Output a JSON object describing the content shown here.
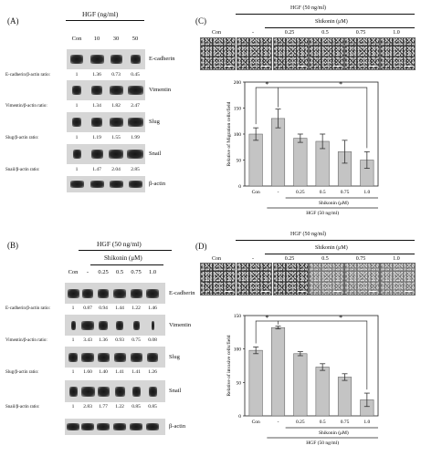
{
  "panel_a": {
    "letter": "(A)",
    "header": "HGF (ng/ml)",
    "conditions": [
      "Con",
      "10",
      "30",
      "50"
    ],
    "blots": [
      {
        "protein": "E-cadherin",
        "ratio_label": "E-cadherin/β-actin ratio:",
        "ratios": [
          "1",
          "1.36",
          "0.73",
          "0.45"
        ]
      },
      {
        "protein": "Vimentin",
        "ratio_label": "Vimentin/β-actin ratio:",
        "ratios": [
          "1",
          "1.34",
          "1.82",
          "2.47"
        ]
      },
      {
        "protein": "Slug",
        "ratio_label": "Slug/β-actin ratio:",
        "ratios": [
          "1",
          "1.19",
          "1.55",
          "1.99"
        ]
      },
      {
        "protein": "Snail",
        "ratio_label": "Snail/β-actin ratio:",
        "ratios": [
          "1",
          "1.47",
          "2.04",
          "2.85"
        ]
      },
      {
        "protein": "β-actin",
        "ratio_label": "",
        "ratios": []
      }
    ]
  },
  "panel_b": {
    "letter": "(B)",
    "header": "HGF (50 ng/ml)",
    "subheader": "Shikonin (μM)",
    "conditions": [
      "Con",
      "-",
      "0.25",
      "0.5",
      "0.75",
      "1.0"
    ],
    "blots": [
      {
        "protein": "E-cadherin",
        "ratio_label": "E-cadherin/β-actin ratio:",
        "ratios": [
          "1",
          "0.87",
          "0.94",
          "1.44",
          "1.22",
          "1.46"
        ]
      },
      {
        "protein": "Vimentin",
        "ratio_label": "Vimentin/β-actin ratio:",
        "ratios": [
          "1",
          "3.43",
          "1.36",
          "0.93",
          "0.75",
          "0.08"
        ]
      },
      {
        "protein": "Slug",
        "ratio_label": "Slug/β-actin ratio:",
        "ratios": [
          "1",
          "1.60",
          "1.40",
          "1.41",
          "1.41",
          "1.26"
        ]
      },
      {
        "protein": "Snail",
        "ratio_label": "Snail/β-actin ratio:",
        "ratios": [
          "1",
          "2.83",
          "1.77",
          "1.22",
          "0.85",
          "0.85"
        ]
      },
      {
        "protein": "β-actin",
        "ratio_label": "",
        "ratios": []
      }
    ]
  },
  "panel_c": {
    "letter": "(C)",
    "header": "HGF (50 ng/ml)",
    "subheader": "Shikonin (μM)",
    "image_labels": [
      "Con",
      "-",
      "0.25",
      "0.5",
      "0.75",
      "1.0"
    ],
    "significance": [
      "*",
      "*"
    ]
  },
  "panel_d": {
    "letter": "(D)",
    "header": "HGF (50 ng/ml)",
    "subheader": "Shikonin (μM)",
    "image_labels": [
      "Con",
      "-",
      "0.25",
      "0.5",
      "0.75",
      "1.0"
    ],
    "significance": [
      "*",
      "*"
    ]
  },
  "chart_data": [
    {
      "type": "bar",
      "panel": "C",
      "categories": [
        "Con",
        "-",
        "0.25",
        "0.5",
        "0.75",
        "1.0"
      ],
      "values": [
        100,
        130,
        92,
        86,
        66,
        50
      ],
      "errors": [
        12,
        18,
        8,
        14,
        22,
        16
      ],
      "ylabel": "Relative of Migration cells/field",
      "xlabel_top": "Shikonin (μM)",
      "xlabel_bottom": "HGF (50 ng/ml)",
      "ylim": [
        0,
        200
      ],
      "yticks": [
        "0",
        "50",
        "100",
        "150",
        "200"
      ],
      "bar_color": "#c4c4c4"
    },
    {
      "type": "bar",
      "panel": "D",
      "categories": [
        "Con",
        "-",
        "0.25",
        "0.5",
        "0.75",
        "1.0"
      ],
      "values": [
        98,
        132,
        93,
        73,
        58,
        24
      ],
      "errors": [
        5,
        2,
        3,
        5,
        5,
        10
      ],
      "ylabel": "Relative of invasive cells/field",
      "xlabel_top": "Shikonin (μM)",
      "xlabel_bottom": "HGF (50 ng/ml)",
      "ylim": [
        0,
        150
      ],
      "yticks": [
        "0",
        "50",
        "100",
        "150"
      ],
      "bar_color": "#c4c4c4"
    }
  ]
}
